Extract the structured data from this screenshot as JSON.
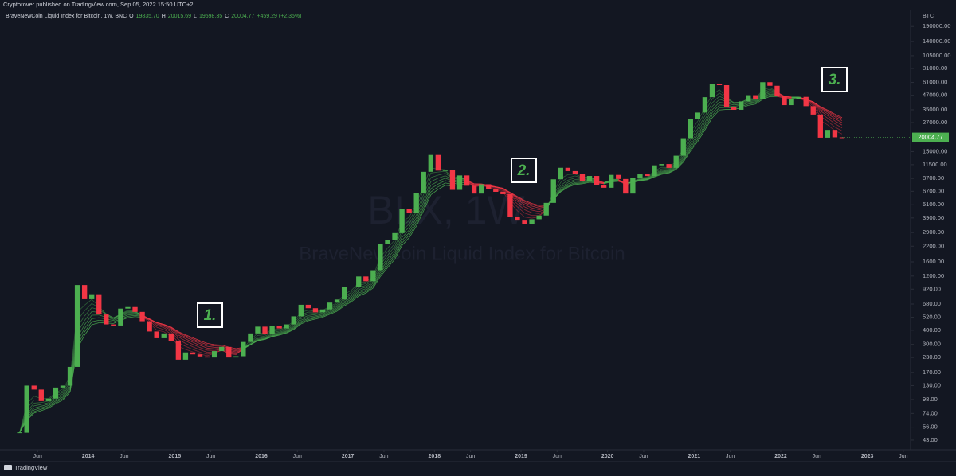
{
  "header": "Cryptorover published on TradingView.com, Sep 05, 2022 15:50 UTC+2",
  "footer": "TradingView",
  "chart_data": {
    "type": "candlestick",
    "legend": {
      "symbol": "BraveNewCoin Liquid Index for Bitcoin, 1W, BNC",
      "fields": [
        {
          "key": "O",
          "value": "19835.70"
        },
        {
          "key": "H",
          "value": "20015.69"
        },
        {
          "key": "L",
          "value": "19598.35"
        },
        {
          "key": "C",
          "value": "20004.77"
        }
      ],
      "change": "+459.29 (+2.35%)"
    },
    "watermark": {
      "ticker": "BLX, 1W",
      "name": "BraveNewCoin Liquid Index for Bitcoin"
    },
    "currency": "BTC",
    "annotations": [
      "1.",
      "2.",
      "3."
    ],
    "up_color": "#4caf50",
    "down_color": "#f23645",
    "log_scale": true,
    "grid": false,
    "x": [
      "2013-03",
      "2013-04",
      "2013-05",
      "2013-06",
      "2013-07",
      "2013-08",
      "2013-09",
      "2013-10",
      "2013-11",
      "2013-12",
      "2014-01",
      "2014-02",
      "2014-03",
      "2014-04",
      "2014-05",
      "2014-06",
      "2014-07",
      "2014-08",
      "2014-09",
      "2014-10",
      "2014-11",
      "2014-12",
      "2015-01",
      "2015-02",
      "2015-03",
      "2015-04",
      "2015-05",
      "2015-06",
      "2015-07",
      "2015-08",
      "2015-09",
      "2015-10",
      "2015-11",
      "2015-12",
      "2016-01",
      "2016-02",
      "2016-03",
      "2016-04",
      "2016-05",
      "2016-06",
      "2016-07",
      "2016-08",
      "2016-09",
      "2016-10",
      "2016-11",
      "2016-12",
      "2017-01",
      "2017-02",
      "2017-03",
      "2017-04",
      "2017-05",
      "2017-06",
      "2017-07",
      "2017-08",
      "2017-09",
      "2017-10",
      "2017-11",
      "2017-12",
      "2018-01",
      "2018-02",
      "2018-03",
      "2018-04",
      "2018-05",
      "2018-06",
      "2018-07",
      "2018-08",
      "2018-09",
      "2018-10",
      "2018-11",
      "2018-12",
      "2019-01",
      "2019-02",
      "2019-03",
      "2019-04",
      "2019-05",
      "2019-06",
      "2019-07",
      "2019-08",
      "2019-09",
      "2019-10",
      "2019-11",
      "2019-12",
      "2020-01",
      "2020-02",
      "2020-03",
      "2020-04",
      "2020-05",
      "2020-06",
      "2020-07",
      "2020-08",
      "2020-09",
      "2020-10",
      "2020-11",
      "2020-12",
      "2021-01",
      "2021-02",
      "2021-03",
      "2021-04",
      "2021-05",
      "2021-06",
      "2021-07",
      "2021-08",
      "2021-09",
      "2021-10",
      "2021-11",
      "2021-12",
      "2022-01",
      "2022-02",
      "2022-03",
      "2022-04",
      "2022-05",
      "2022-06",
      "2022-07",
      "2022-08",
      "2022-09"
    ],
    "values": [
      50,
      130,
      120,
      95,
      100,
      125,
      130,
      190,
      1000,
      750,
      830,
      550,
      450,
      440,
      620,
      640,
      580,
      480,
      390,
      340,
      375,
      320,
      220,
      255,
      245,
      235,
      230,
      262,
      285,
      230,
      236,
      315,
      375,
      430,
      370,
      435,
      415,
      450,
      530,
      670,
      625,
      575,
      610,
      700,
      745,
      960,
      970,
      1190,
      1080,
      1350,
      2300,
      2480,
      2870,
      4700,
      4340,
      6450,
      9950,
      14000,
      10200,
      10300,
      6900,
      9250,
      7500,
      6400,
      7730,
      7000,
      6630,
      6320,
      4000,
      3700,
      3440,
      3800,
      4100,
      5300,
      8550,
      10800,
      10100,
      9600,
      8300,
      9150,
      7550,
      7200,
      9350,
      8600,
      6400,
      8800,
      9450,
      9140,
      11350,
      11650,
      10780,
      13800,
      19700,
      29000,
      33100,
      45200,
      58800,
      57700,
      37300,
      35000,
      41500,
      47100,
      43800,
      61300,
      57000,
      46300,
      38500,
      43200,
      45500,
      37700,
      31800,
      19900,
      23300,
      20050,
      20004.77
    ],
    "xlim": [
      "2013-01",
      "2023-07"
    ],
    "xticks": [
      {
        "value": "2013-06",
        "label": "Jun"
      },
      {
        "value": "2014-01",
        "label": "2014"
      },
      {
        "value": "2014-06",
        "label": "Jun"
      },
      {
        "value": "2015-01",
        "label": "2015"
      },
      {
        "value": "2015-06",
        "label": "Jun"
      },
      {
        "value": "2016-01",
        "label": "2016"
      },
      {
        "value": "2016-06",
        "label": "Jun"
      },
      {
        "value": "2017-01",
        "label": "2017"
      },
      {
        "value": "2017-06",
        "label": "Jun"
      },
      {
        "value": "2018-01",
        "label": "2018"
      },
      {
        "value": "2018-06",
        "label": "Jun"
      },
      {
        "value": "2019-01",
        "label": "2019"
      },
      {
        "value": "2019-06",
        "label": "Jun"
      },
      {
        "value": "2020-01",
        "label": "2020"
      },
      {
        "value": "2020-06",
        "label": "Jun"
      },
      {
        "value": "2021-01",
        "label": "2021"
      },
      {
        "value": "2021-06",
        "label": "Jun"
      },
      {
        "value": "2022-01",
        "label": "2022"
      },
      {
        "value": "2022-06",
        "label": "Jun"
      },
      {
        "value": "2023-01",
        "label": "2023"
      },
      {
        "value": "2023-06",
        "label": "Jun"
      }
    ],
    "ylim": [
      35.4,
      267600
    ],
    "yticks": [
      {
        "value": 43,
        "label": "43.00"
      },
      {
        "value": 56,
        "label": "56.00"
      },
      {
        "value": 74,
        "label": "74.00"
      },
      {
        "value": 98,
        "label": "98.00"
      },
      {
        "value": 130,
        "label": "130.00"
      },
      {
        "value": 170,
        "label": "170.00"
      },
      {
        "value": 230,
        "label": "230.00"
      },
      {
        "value": 300,
        "label": "300.00"
      },
      {
        "value": 400,
        "label": "400.00"
      },
      {
        "value": 520,
        "label": "520.00"
      },
      {
        "value": 680,
        "label": "680.00"
      },
      {
        "value": 920,
        "label": "920.00"
      },
      {
        "value": 1200,
        "label": "1200.00"
      },
      {
        "value": 1600,
        "label": "1600.00"
      },
      {
        "value": 2200,
        "label": "2200.00"
      },
      {
        "value": 2900,
        "label": "2900.00"
      },
      {
        "value": 3900,
        "label": "3900.00"
      },
      {
        "value": 5100,
        "label": "5100.00"
      },
      {
        "value": 6700,
        "label": "6700.00"
      },
      {
        "value": 8700,
        "label": "8700.00"
      },
      {
        "value": 11500,
        "label": "11500.00"
      },
      {
        "value": 15000,
        "label": "15000.00"
      },
      {
        "value": 27000,
        "label": "27000.00"
      },
      {
        "value": 35000,
        "label": "35000.00"
      },
      {
        "value": 47000,
        "label": "47000.00"
      },
      {
        "value": 61000,
        "label": "61000.00"
      },
      {
        "value": 81000,
        "label": "81000.00"
      },
      {
        "value": 105000,
        "label": "105000.00"
      },
      {
        "value": 140000,
        "label": "140000.00"
      },
      {
        "value": 190000,
        "label": "190000.00"
      }
    ]
  }
}
